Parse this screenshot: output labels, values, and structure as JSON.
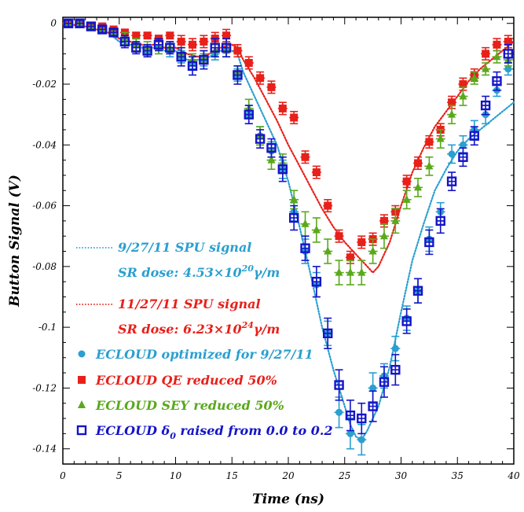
{
  "chart_data": {
    "type": "scatter",
    "title": "",
    "xlabel": "Time (ns)",
    "ylabel": "Button Signal (V)",
    "xlim": [
      0,
      40
    ],
    "ylim": [
      -0.145,
      0.002
    ],
    "x_ticks": [
      0,
      5,
      10,
      15,
      20,
      25,
      30,
      35,
      40
    ],
    "x_tick_labels": [
      "0",
      "5",
      "10",
      "15",
      "20",
      "25",
      "30",
      "35",
      "40"
    ],
    "y_ticks": [
      0,
      -0.02,
      -0.04,
      -0.06,
      -0.08,
      -0.1,
      -0.12,
      -0.14
    ],
    "y_tick_labels": [
      "0",
      "-0.02",
      "-0.04",
      "-0.06",
      "-0.08",
      "-0.1",
      "-0.12",
      "-0.14"
    ],
    "legend_position": "bottom-left",
    "lines": [
      {
        "name": "9/27/11 SPU signal",
        "note_prefix": "SR dose: 4.53×10",
        "note_exp": "20",
        "note_suffix": "γ/m",
        "color": "#2a9fd0",
        "style": "dotted",
        "x": [
          0,
          1,
          2,
          3,
          4,
          5,
          6,
          7,
          8,
          9,
          10,
          11,
          12,
          13,
          14,
          15,
          15.5,
          16,
          17,
          18,
          19,
          20,
          21,
          22,
          23,
          24,
          25,
          25.5,
          26,
          26.5,
          27,
          27.5,
          28,
          29,
          30,
          31,
          32,
          33,
          34,
          35,
          36,
          37,
          38,
          39,
          40
        ],
        "y": [
          0,
          -0.0005,
          -0.001,
          -0.002,
          -0.003,
          -0.006,
          -0.007,
          -0.008,
          -0.008,
          -0.009,
          -0.009,
          -0.012,
          -0.012,
          -0.011,
          -0.009,
          -0.009,
          -0.01,
          -0.016,
          -0.024,
          -0.032,
          -0.04,
          -0.052,
          -0.067,
          -0.083,
          -0.1,
          -0.114,
          -0.126,
          -0.132,
          -0.136,
          -0.137,
          -0.134,
          -0.13,
          -0.126,
          -0.113,
          -0.095,
          -0.078,
          -0.066,
          -0.055,
          -0.048,
          -0.042,
          -0.038,
          -0.035,
          -0.032,
          -0.029,
          -0.026
        ]
      },
      {
        "name": "11/27/11 SPU signal",
        "note_prefix": "SR dose: 6.23×10",
        "note_exp": "24",
        "note_suffix": "γ/m",
        "color": "#e8201a",
        "style": "dotted",
        "x": [
          0,
          1,
          2,
          3,
          4,
          5,
          6,
          7,
          8,
          9,
          10,
          11,
          12,
          13,
          14,
          15,
          15.5,
          16,
          17,
          18,
          19,
          20,
          21,
          22,
          23,
          24,
          25,
          26,
          27,
          27.5,
          28,
          29,
          30,
          31,
          32,
          33,
          34,
          35,
          36,
          37,
          38,
          39,
          40
        ],
        "y": [
          0,
          -0.0005,
          -0.001,
          -0.002,
          -0.003,
          -0.005,
          -0.006,
          -0.007,
          -0.007,
          -0.008,
          -0.008,
          -0.01,
          -0.011,
          -0.01,
          -0.008,
          -0.007,
          -0.008,
          -0.012,
          -0.018,
          -0.025,
          -0.032,
          -0.04,
          -0.047,
          -0.054,
          -0.061,
          -0.067,
          -0.072,
          -0.076,
          -0.08,
          -0.082,
          -0.08,
          -0.072,
          -0.06,
          -0.049,
          -0.041,
          -0.034,
          -0.029,
          -0.024,
          -0.019,
          -0.015,
          -0.012,
          -0.009,
          -0.006
        ]
      }
    ],
    "series": [
      {
        "name": "ECLOUD optimized for 9/27/11",
        "color": "#2a9fd0",
        "marker": "circle",
        "x": [
          0.5,
          1.5,
          2.5,
          3.5,
          4.5,
          5.5,
          6.5,
          7.5,
          8.5,
          9.5,
          10.5,
          11.5,
          12.5,
          13.5,
          14.5,
          15.5,
          16.5,
          17.5,
          18.5,
          19.5,
          20.5,
          21.5,
          22.5,
          23.5,
          24.5,
          25.5,
          26.5,
          27.5,
          28.5,
          29.5,
          30.5,
          31.5,
          32.5,
          33.5,
          34.5,
          35.5,
          36.5,
          37.5,
          38.5,
          39.5
        ],
        "y": [
          0,
          0,
          -0.001,
          -0.002,
          -0.003,
          -0.005,
          -0.007,
          -0.009,
          -0.008,
          -0.009,
          -0.011,
          -0.013,
          -0.012,
          -0.01,
          -0.009,
          -0.017,
          -0.03,
          -0.037,
          -0.042,
          -0.048,
          -0.062,
          -0.075,
          -0.086,
          -0.102,
          -0.128,
          -0.135,
          -0.137,
          -0.12,
          -0.116,
          -0.107,
          -0.097,
          -0.088,
          -0.071,
          -0.062,
          -0.043,
          -0.04,
          -0.035,
          -0.03,
          -0.022,
          -0.015
        ],
        "err": [
          0.001,
          0.001,
          0.001,
          0.001,
          0.001,
          0.002,
          0.002,
          0.002,
          0.002,
          0.002,
          0.002,
          0.002,
          0.002,
          0.002,
          0.002,
          0.002,
          0.003,
          0.003,
          0.003,
          0.003,
          0.003,
          0.004,
          0.004,
          0.004,
          0.005,
          0.005,
          0.005,
          0.005,
          0.004,
          0.004,
          0.004,
          0.004,
          0.004,
          0.003,
          0.003,
          0.003,
          0.003,
          0.003,
          0.002,
          0.002
        ]
      },
      {
        "name": "ECLOUD QE reduced 50%",
        "color": "#e8201a",
        "marker": "square",
        "x": [
          0.5,
          1.5,
          2.5,
          3.5,
          4.5,
          5.5,
          6.5,
          7.5,
          8.5,
          9.5,
          10.5,
          11.5,
          12.5,
          13.5,
          14.5,
          15.5,
          16.5,
          17.5,
          18.5,
          19.5,
          20.5,
          21.5,
          22.5,
          23.5,
          24.5,
          25.5,
          26.5,
          27.5,
          28.5,
          29.5,
          30.5,
          31.5,
          32.5,
          33.5,
          34.5,
          35.5,
          36.5,
          37.5,
          38.5,
          39.5
        ],
        "y": [
          0,
          0,
          -0.001,
          -0.001,
          -0.002,
          -0.003,
          -0.004,
          -0.004,
          -0.005,
          -0.004,
          -0.006,
          -0.007,
          -0.006,
          -0.005,
          -0.004,
          -0.009,
          -0.013,
          -0.018,
          -0.021,
          -0.028,
          -0.031,
          -0.044,
          -0.049,
          -0.06,
          -0.07,
          -0.077,
          -0.072,
          -0.071,
          -0.065,
          -0.062,
          -0.052,
          -0.046,
          -0.039,
          -0.035,
          -0.026,
          -0.02,
          -0.017,
          -0.01,
          -0.007,
          -0.006
        ],
        "err": [
          0.001,
          0.001,
          0.001,
          0.001,
          0.001,
          0.001,
          0.001,
          0.001,
          0.001,
          0.001,
          0.002,
          0.002,
          0.002,
          0.002,
          0.002,
          0.002,
          0.002,
          0.002,
          0.002,
          0.002,
          0.002,
          0.002,
          0.002,
          0.002,
          0.002,
          0.002,
          0.002,
          0.002,
          0.002,
          0.002,
          0.002,
          0.002,
          0.002,
          0.002,
          0.002,
          0.002,
          0.002,
          0.002,
          0.002,
          0.002
        ]
      },
      {
        "name": "ECLOUD SEY reduced 50%",
        "color": "#5aa81c",
        "marker": "triangle",
        "x": [
          0.5,
          1.5,
          2.5,
          3.5,
          4.5,
          5.5,
          6.5,
          7.5,
          8.5,
          9.5,
          10.5,
          11.5,
          12.5,
          13.5,
          14.5,
          15.5,
          16.5,
          17.5,
          18.5,
          19.5,
          20.5,
          21.5,
          22.5,
          23.5,
          24.5,
          25.5,
          26.5,
          27.5,
          28.5,
          29.5,
          30.5,
          31.5,
          32.5,
          33.5,
          34.5,
          35.5,
          36.5,
          37.5,
          38.5,
          39.5
        ],
        "y": [
          0,
          0,
          -0.001,
          -0.002,
          -0.003,
          -0.005,
          -0.007,
          -0.008,
          -0.008,
          -0.008,
          -0.01,
          -0.012,
          -0.011,
          -0.009,
          -0.009,
          -0.016,
          -0.028,
          -0.037,
          -0.045,
          -0.046,
          -0.058,
          -0.066,
          -0.068,
          -0.075,
          -0.082,
          -0.082,
          -0.082,
          -0.075,
          -0.07,
          -0.065,
          -0.058,
          -0.054,
          -0.047,
          -0.038,
          -0.03,
          -0.024,
          -0.018,
          -0.015,
          -0.011,
          -0.012
        ],
        "err": [
          0.001,
          0.001,
          0.001,
          0.001,
          0.001,
          0.002,
          0.002,
          0.002,
          0.002,
          0.002,
          0.002,
          0.002,
          0.002,
          0.002,
          0.002,
          0.002,
          0.003,
          0.003,
          0.003,
          0.003,
          0.003,
          0.004,
          0.004,
          0.004,
          0.004,
          0.004,
          0.004,
          0.004,
          0.004,
          0.004,
          0.003,
          0.003,
          0.003,
          0.003,
          0.003,
          0.003,
          0.002,
          0.002,
          0.002,
          0.002
        ]
      },
      {
        "name": "ECLOUD δ0 raised from 0.0 to 0.2",
        "legend_pre": "ECLOUD ",
        "legend_sym": "δ",
        "legend_sub": "0",
        "legend_post": " raised from 0.0 to 0.2",
        "color": "#1414c8",
        "marker": "open-square",
        "x": [
          0.5,
          1.5,
          2.5,
          3.5,
          4.5,
          5.5,
          6.5,
          7.5,
          8.5,
          9.5,
          10.5,
          11.5,
          12.5,
          13.5,
          14.5,
          15.5,
          16.5,
          17.5,
          18.5,
          19.5,
          20.5,
          21.5,
          22.5,
          23.5,
          24.5,
          25.5,
          26.5,
          27.5,
          28.5,
          29.5,
          30.5,
          31.5,
          32.5,
          33.5,
          34.5,
          35.5,
          36.5,
          37.5,
          38.5,
          39.5
        ],
        "y": [
          0,
          0,
          -0.001,
          -0.002,
          -0.003,
          -0.006,
          -0.008,
          -0.009,
          -0.007,
          -0.008,
          -0.011,
          -0.014,
          -0.012,
          -0.008,
          -0.008,
          -0.017,
          -0.03,
          -0.038,
          -0.041,
          -0.048,
          -0.064,
          -0.074,
          -0.085,
          -0.102,
          -0.119,
          -0.129,
          -0.13,
          -0.126,
          -0.118,
          -0.114,
          -0.098,
          -0.088,
          -0.072,
          -0.065,
          -0.052,
          -0.044,
          -0.037,
          -0.027,
          -0.019,
          -0.01
        ],
        "err": [
          0.001,
          0.001,
          0.001,
          0.001,
          0.001,
          0.002,
          0.002,
          0.002,
          0.002,
          0.002,
          0.003,
          0.003,
          0.003,
          0.003,
          0.003,
          0.003,
          0.003,
          0.003,
          0.003,
          0.004,
          0.004,
          0.004,
          0.005,
          0.005,
          0.005,
          0.005,
          0.005,
          0.005,
          0.005,
          0.005,
          0.004,
          0.004,
          0.004,
          0.004,
          0.003,
          0.003,
          0.003,
          0.003,
          0.003,
          0.003
        ]
      }
    ]
  }
}
